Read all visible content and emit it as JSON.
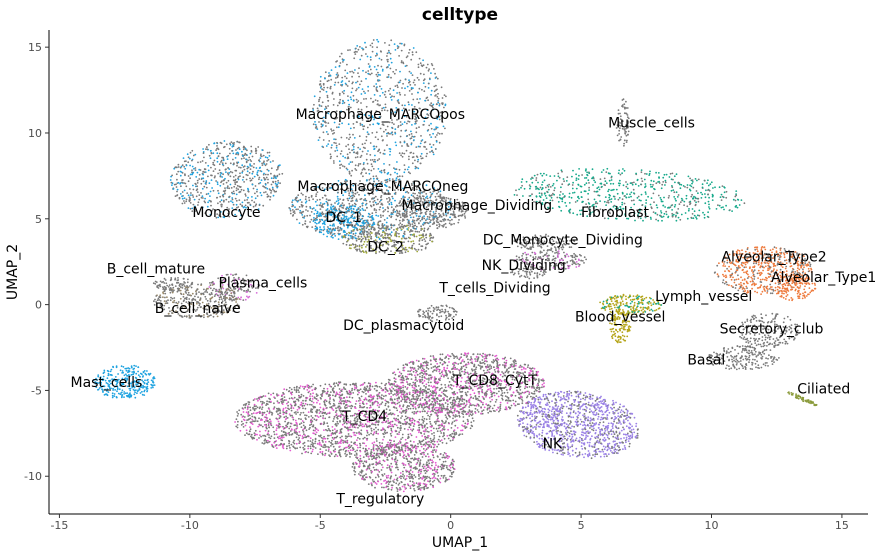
{
  "chart_data": {
    "type": "scatter",
    "title": "celltype",
    "xlabel": "UMAP_1",
    "ylabel": "UMAP_2",
    "xlim": [
      -15.4,
      16.0
    ],
    "ylim": [
      -12.2,
      16.0
    ],
    "xticks": [
      -15,
      -10,
      -5,
      0,
      5,
      10,
      15
    ],
    "yticks": [
      -10,
      -5,
      0,
      5,
      10,
      15
    ],
    "legend": "none",
    "grid": false,
    "clusters": [
      {
        "label": "Macrophage_MARCOpos",
        "x": -2.7,
        "y": 11.3,
        "rx": 2.6,
        "ry": 4.2,
        "rot": 0,
        "color": "#7a7a7a",
        "accent": "#1fa3e0",
        "n": 900,
        "label_x": -2.7,
        "label_y": 11.1
      },
      {
        "label": "Muscle_cells",
        "x": 6.6,
        "y": 10.6,
        "rx": 0.25,
        "ry": 1.4,
        "rot": 0,
        "color": "#7a7a7a",
        "accent": "#7a7a7a",
        "n": 70,
        "label_x": 7.7,
        "label_y": 10.6
      },
      {
        "label": "Monocyte",
        "x": -8.6,
        "y": 7.3,
        "rx": 2.1,
        "ry": 2.3,
        "rot": -30,
        "color": "#7a7a7a",
        "accent": "#1fa3e0",
        "n": 650,
        "label_x": -8.6,
        "label_y": 5.4
      },
      {
        "label": "Macrophage_MARCOneg",
        "x": -3.0,
        "y": 5.6,
        "rx": 3.2,
        "ry": 1.8,
        "rot": 0,
        "color": "#7a7a7a",
        "accent": "#1fa3e0",
        "n": 800,
        "label_x": -2.6,
        "label_y": 6.9
      },
      {
        "label": "Macrophage_Dividing",
        "x": -0.8,
        "y": 5.5,
        "rx": 1.5,
        "ry": 1.1,
        "rot": 0,
        "color": "#7a7a7a",
        "accent": "#7a7a7a",
        "n": 250,
        "label_x": 1.0,
        "label_y": 5.8
      },
      {
        "label": "DC_1",
        "x": -4.1,
        "y": 4.8,
        "rx": 1.2,
        "ry": 1.0,
        "rot": 0,
        "color": "#1fa3e0",
        "accent": "#7a7a7a",
        "n": 250,
        "label_x": -4.1,
        "label_y": 5.1
      },
      {
        "label": "DC_2",
        "x": -2.4,
        "y": 3.8,
        "rx": 1.8,
        "ry": 0.9,
        "rot": 0,
        "color": "#7a7a7a",
        "accent": "#9fa83a",
        "n": 300,
        "label_x": -2.5,
        "label_y": 3.4
      },
      {
        "label": "Fibroblast",
        "x": 6.8,
        "y": 6.4,
        "rx": 4.5,
        "ry": 1.5,
        "rot": -5,
        "color": "#16a98b",
        "accent": "#7a7a7a",
        "n": 650,
        "label_x": 6.3,
        "label_y": 5.4
      },
      {
        "label": "DC_Monocyte_Dividing",
        "x": 3.6,
        "y": 3.6,
        "rx": 1.2,
        "ry": 0.5,
        "rot": 0,
        "color": "#7a7a7a",
        "accent": "#7a7a7a",
        "n": 120,
        "label_x": 4.3,
        "label_y": 3.8
      },
      {
        "label": "NK_Dividing",
        "x": 3.8,
        "y": 2.6,
        "rx": 1.4,
        "ry": 0.6,
        "rot": 0,
        "color": "#7a7a7a",
        "accent": "#d66ad8",
        "n": 180,
        "label_x": 2.8,
        "label_y": 2.3
      },
      {
        "label": "T_cells_Dividing",
        "x": 3.0,
        "y": 1.9,
        "rx": 0.7,
        "ry": 0.4,
        "rot": 0,
        "color": "#7a7a7a",
        "accent": "#7a7a7a",
        "n": 60,
        "label_x": 1.7,
        "label_y": 1.0
      },
      {
        "label": "B_cell_mature",
        "x": -10.6,
        "y": 1.2,
        "rx": 0.8,
        "ry": 0.4,
        "rot": 0,
        "color": "#7a7a7a",
        "accent": "#7a7a7a",
        "n": 80,
        "label_x": -11.3,
        "label_y": 2.1
      },
      {
        "label": "Plasma_cells",
        "x": -8.3,
        "y": 1.0,
        "rx": 1.0,
        "ry": 0.8,
        "rot": 0,
        "color": "#7a7a7a",
        "accent": "#d66ad8",
        "n": 120,
        "label_x": -7.2,
        "label_y": 1.3
      },
      {
        "label": "B_cell_naive",
        "x": -9.7,
        "y": 0.2,
        "rx": 1.7,
        "ry": 1.0,
        "rot": 0,
        "color": "#7a7a7a",
        "accent": "#9a8a6a",
        "n": 350,
        "label_x": -9.7,
        "label_y": -0.2
      },
      {
        "label": "DC_plasmacytoid",
        "x": -0.5,
        "y": -0.5,
        "rx": 0.8,
        "ry": 0.5,
        "rot": 0,
        "color": "#7a7a7a",
        "accent": "#7a7a7a",
        "n": 90,
        "label_x": -1.8,
        "label_y": -1.2
      },
      {
        "label": "Lymph_vessel",
        "x": 6.9,
        "y": 0.0,
        "rx": 1.2,
        "ry": 0.6,
        "rot": 0,
        "color": "#b5a51a",
        "accent": "#16a98b",
        "n": 220,
        "label_x": 9.7,
        "label_y": 0.5
      },
      {
        "label": "Blood_vessel",
        "x": 6.5,
        "y": -1.3,
        "rx": 0.4,
        "ry": 1.0,
        "rot": 0,
        "color": "#b5a51a",
        "accent": "#b5a51a",
        "n": 110,
        "label_x": 6.5,
        "label_y": -0.7
      },
      {
        "label": "Alveolar_Type2",
        "x": 12.0,
        "y": 2.0,
        "rx": 1.9,
        "ry": 1.4,
        "rot": 0,
        "color": "#ee7b3e",
        "accent": "#7a7a7a",
        "n": 550,
        "label_x": 12.4,
        "label_y": 2.8
      },
      {
        "label": "Alveolar_Type1",
        "x": 13.2,
        "y": 1.0,
        "rx": 0.8,
        "ry": 0.8,
        "rot": 0,
        "color": "#ee7b3e",
        "accent": "#ee7b3e",
        "n": 150,
        "label_x": 14.3,
        "label_y": 1.6
      },
      {
        "label": "Secretory_club",
        "x": 12.2,
        "y": -1.5,
        "rx": 1.2,
        "ry": 1.0,
        "rot": 0,
        "color": "#7a7a7a",
        "accent": "#7a7a7a",
        "n": 200,
        "label_x": 12.3,
        "label_y": -1.4
      },
      {
        "label": "Basal",
        "x": 11.2,
        "y": -3.1,
        "rx": 1.4,
        "ry": 0.7,
        "rot": 0,
        "color": "#7a7a7a",
        "accent": "#7a7a7a",
        "n": 200,
        "label_x": 9.8,
        "label_y": -3.2
      },
      {
        "label": "Ciliated",
        "x": 13.5,
        "y": -5.5,
        "rx": 0.7,
        "ry": 0.1,
        "rot": -35,
        "color": "#8a9a3a",
        "accent": "#8a9a3a",
        "n": 60,
        "label_x": 14.3,
        "label_y": -4.9
      },
      {
        "label": "Mast_cells",
        "x": -12.5,
        "y": -4.5,
        "rx": 1.2,
        "ry": 1.0,
        "rot": 0,
        "color": "#1fa3e0",
        "accent": "#1fa3e0",
        "n": 280,
        "label_x": -13.2,
        "label_y": -4.5
      },
      {
        "label": "T_CD4",
        "x": -3.7,
        "y": -6.7,
        "rx": 4.6,
        "ry": 2.2,
        "rot": 0,
        "color": "#7a7a7a",
        "accent": "#e45bd0",
        "n": 2200,
        "label_x": -3.3,
        "label_y": -6.5
      },
      {
        "label": "T_CD8_CytT",
        "x": 0.6,
        "y": -4.6,
        "rx": 3.0,
        "ry": 1.8,
        "rot": 0,
        "color": "#7a7a7a",
        "accent": "#e45bd0",
        "n": 1200,
        "label_x": 1.7,
        "label_y": -4.4
      },
      {
        "label": "NK",
        "x": 4.9,
        "y": -7.0,
        "rx": 2.4,
        "ry": 1.9,
        "rot": -20,
        "color": "#9b82e6",
        "accent": "#7a7a7a",
        "n": 1100,
        "label_x": 3.9,
        "label_y": -8.1
      },
      {
        "label": "T_regulatory",
        "x": -1.8,
        "y": -9.5,
        "rx": 2.0,
        "ry": 1.4,
        "rot": 0,
        "color": "#7a7a7a",
        "accent": "#e45bd0",
        "n": 600,
        "label_x": -2.7,
        "label_y": -11.3
      }
    ]
  }
}
